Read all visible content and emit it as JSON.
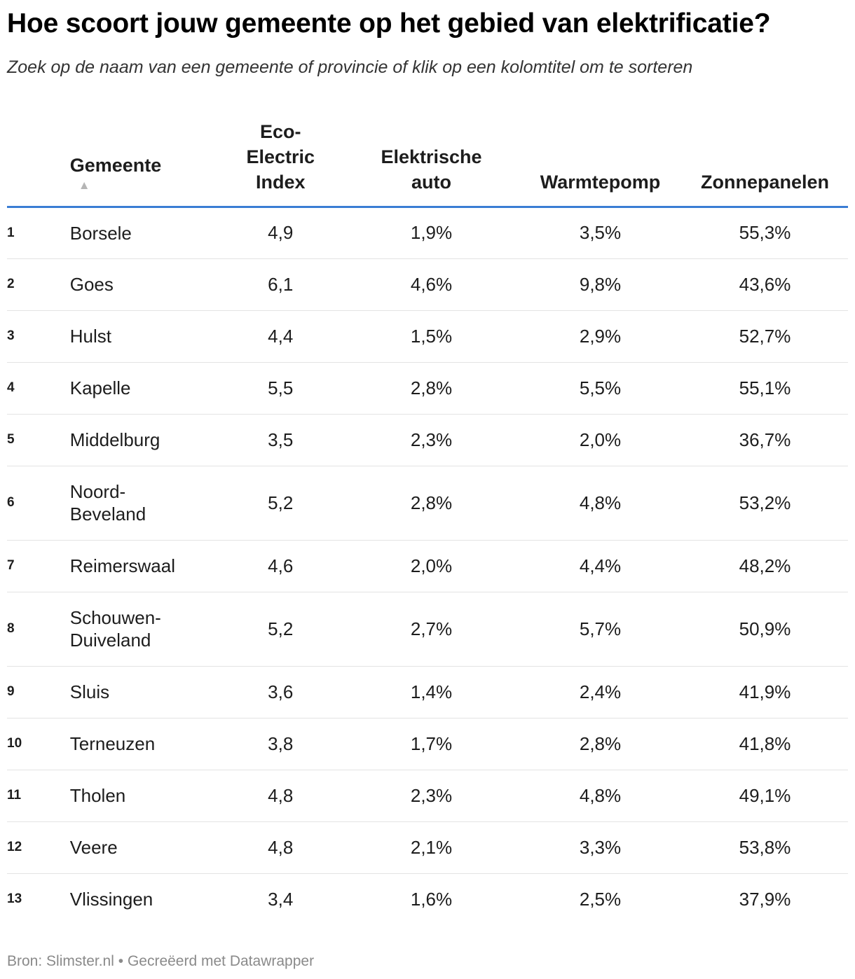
{
  "title": "Hoe scoort jouw gemeente op het gebied van elektrificatie?",
  "subtitle": "Zoek op de naam van een gemeente of provincie of klik op een kolomtitel om te sorteren",
  "footer": {
    "source": "Bron: Slimster.nl",
    "separator": "•",
    "credit": "Gecreëerd met Datawrapper"
  },
  "colors": {
    "accent": "#3a7dd4",
    "sort_arrow": "#b5b5b5",
    "divider": "#e3e3e3"
  },
  "chart_data": {
    "type": "table",
    "title": "Hoe scoort jouw gemeente op het gebied van elektrificatie?",
    "columns": [
      "",
      "Gemeente",
      "Eco-Electric Index",
      "Elektrische auto",
      "Warmtepomp",
      "Zonnepanelen"
    ],
    "header_lines": {
      "gemeente": [
        "Gemeente"
      ],
      "eco": [
        "Eco-",
        "Electric",
        "Index"
      ],
      "auto": [
        "Elektrische",
        "auto"
      ],
      "pomp": [
        "Warmtepomp"
      ],
      "zon": [
        "Zonnepanelen"
      ]
    },
    "sort": {
      "column": "Gemeente",
      "direction": "ascending",
      "icon": "▲"
    },
    "rows": [
      {
        "rank": "1",
        "name_lines": [
          "Borsele"
        ],
        "eco": "4,9",
        "auto": "1,9%",
        "pomp": "3,5%",
        "zon": "55,3%"
      },
      {
        "rank": "2",
        "name_lines": [
          "Goes"
        ],
        "eco": "6,1",
        "auto": "4,6%",
        "pomp": "9,8%",
        "zon": "43,6%"
      },
      {
        "rank": "3",
        "name_lines": [
          "Hulst"
        ],
        "eco": "4,4",
        "auto": "1,5%",
        "pomp": "2,9%",
        "zon": "52,7%"
      },
      {
        "rank": "4",
        "name_lines": [
          "Kapelle"
        ],
        "eco": "5,5",
        "auto": "2,8%",
        "pomp": "5,5%",
        "zon": "55,1%"
      },
      {
        "rank": "5",
        "name_lines": [
          "Middelburg"
        ],
        "eco": "3,5",
        "auto": "2,3%",
        "pomp": "2,0%",
        "zon": "36,7%"
      },
      {
        "rank": "6",
        "name_lines": [
          "Noord-",
          "Beveland"
        ],
        "eco": "5,2",
        "auto": "2,8%",
        "pomp": "4,8%",
        "zon": "53,2%"
      },
      {
        "rank": "7",
        "name_lines": [
          "Reimerswaal"
        ],
        "eco": "4,6",
        "auto": "2,0%",
        "pomp": "4,4%",
        "zon": "48,2%"
      },
      {
        "rank": "8",
        "name_lines": [
          "Schouwen-",
          "Duiveland"
        ],
        "eco": "5,2",
        "auto": "2,7%",
        "pomp": "5,7%",
        "zon": "50,9%"
      },
      {
        "rank": "9",
        "name_lines": [
          "Sluis"
        ],
        "eco": "3,6",
        "auto": "1,4%",
        "pomp": "2,4%",
        "zon": "41,9%"
      },
      {
        "rank": "10",
        "name_lines": [
          "Terneuzen"
        ],
        "eco": "3,8",
        "auto": "1,7%",
        "pomp": "2,8%",
        "zon": "41,8%"
      },
      {
        "rank": "11",
        "name_lines": [
          "Tholen"
        ],
        "eco": "4,8",
        "auto": "2,3%",
        "pomp": "4,8%",
        "zon": "49,1%"
      },
      {
        "rank": "12",
        "name_lines": [
          "Veere"
        ],
        "eco": "4,8",
        "auto": "2,1%",
        "pomp": "3,3%",
        "zon": "53,8%"
      },
      {
        "rank": "13",
        "name_lines": [
          "Vlissingen"
        ],
        "eco": "3,4",
        "auto": "1,6%",
        "pomp": "2,5%",
        "zon": "37,9%"
      }
    ]
  }
}
